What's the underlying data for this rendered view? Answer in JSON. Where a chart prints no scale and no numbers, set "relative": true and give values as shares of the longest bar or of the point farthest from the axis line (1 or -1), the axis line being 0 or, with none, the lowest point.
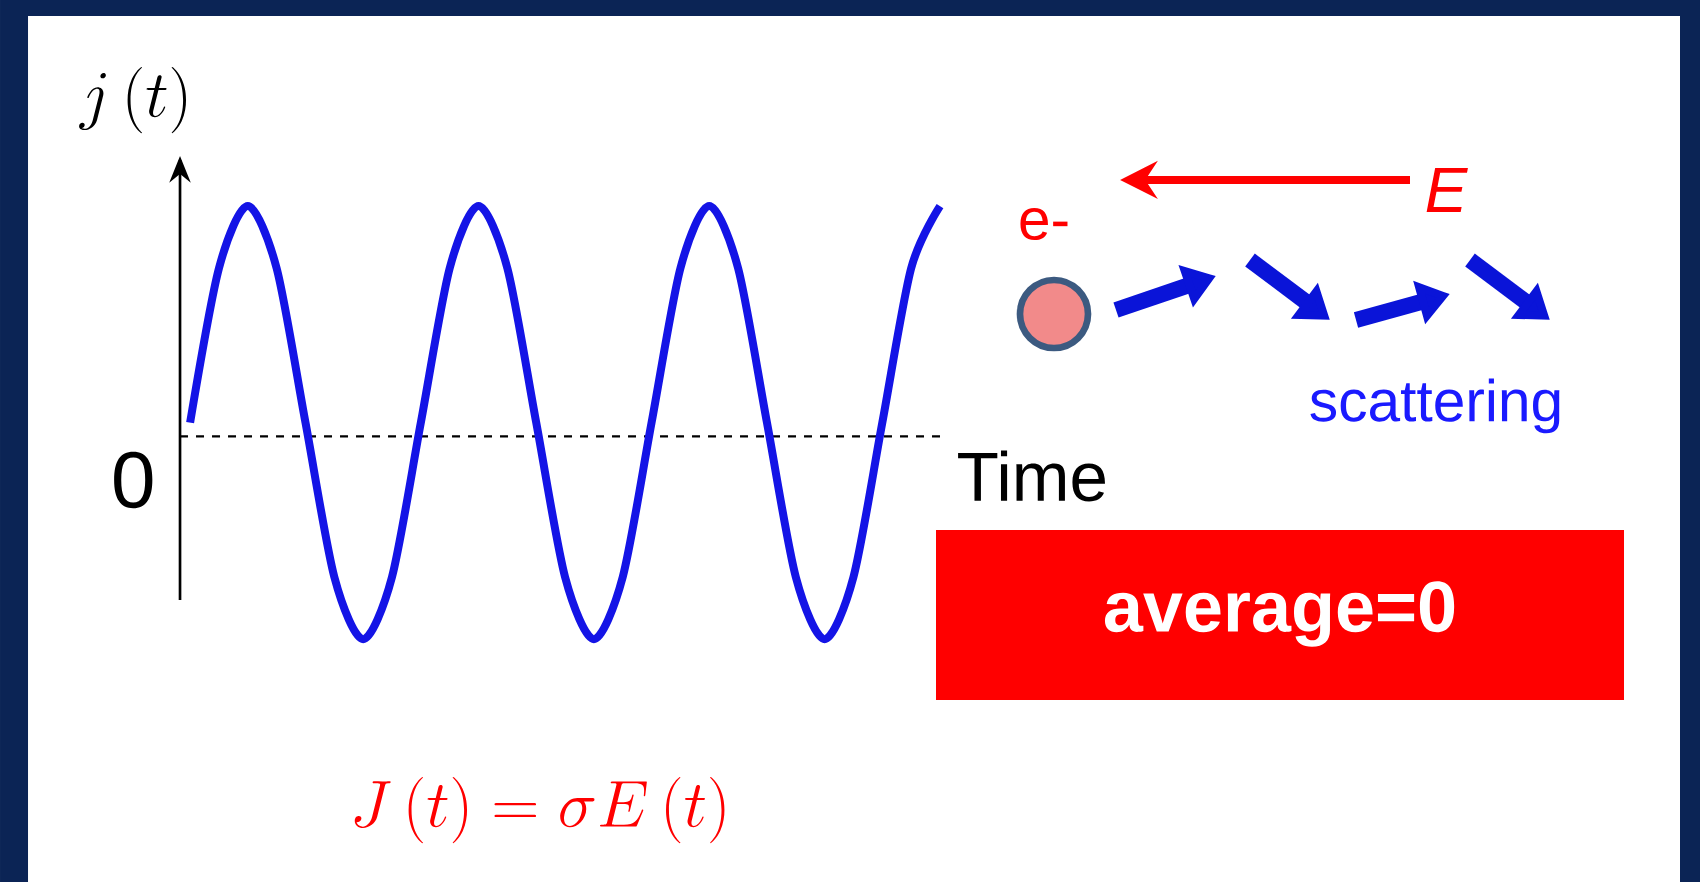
{
  "chart_data": {
    "type": "line",
    "relative": true,
    "categories": [
      null,
      null,
      null,
      null,
      null,
      null,
      null,
      null,
      null,
      null,
      null,
      null,
      null,
      null,
      null,
      null,
      null,
      null,
      null,
      null,
      null,
      null,
      null,
      null,
      null,
      null,
      null
    ],
    "series": [
      {
        "color": "#1414e6",
        "values": [
          0.06,
          0.73,
          1,
          0.73,
          0.06,
          -0.61,
          -0.88,
          -0.61,
          0.06,
          0.73,
          1,
          0.73,
          0.06,
          -0.61,
          -0.88,
          -0.61,
          0.06,
          0.73,
          1,
          0.73,
          0.06,
          -0.61,
          -0.88,
          -0.61,
          0.06,
          0.73,
          1
        ]
      }
    ],
    "ylabel": "j\\left(t\\right)",
    "xlabel": "Time",
    "ref_lines": [
      {
        "axis": "y",
        "value": 0,
        "line_style": "dashed",
        "color": "#000000"
      }
    ],
    "annotations": [
      "0",
      "e-",
      "E",
      "scattering",
      "average=0",
      "J\\left(t\\right)=\\sigma E\\left(t\\right)"
    ]
  }
}
